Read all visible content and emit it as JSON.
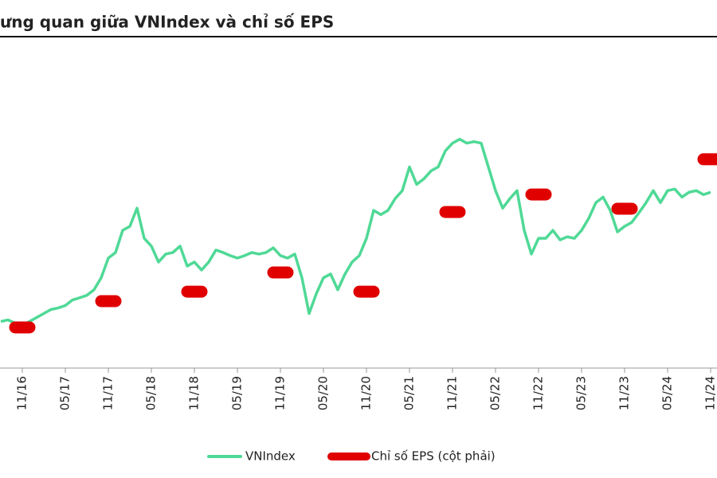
{
  "chart_data": {
    "type": "line",
    "title": "ưng quan giữa VNIndex và chỉ số EPS",
    "x": [
      "08/16",
      "09/16",
      "10/16",
      "11/16",
      "12/16",
      "01/17",
      "02/17",
      "03/17",
      "04/17",
      "05/17",
      "06/17",
      "07/17",
      "08/17",
      "09/17",
      "10/17",
      "11/17",
      "12/17",
      "01/18",
      "02/18",
      "03/18",
      "04/18",
      "05/18",
      "06/18",
      "07/18",
      "08/18",
      "09/18",
      "10/18",
      "11/18",
      "12/18",
      "01/19",
      "02/19",
      "03/19",
      "04/19",
      "05/19",
      "06/19",
      "07/19",
      "08/19",
      "09/19",
      "10/19",
      "11/19",
      "12/19",
      "01/20",
      "02/20",
      "03/20",
      "04/20",
      "05/20",
      "06/20",
      "07/20",
      "08/20",
      "09/20",
      "10/20",
      "11/20",
      "12/20",
      "01/21",
      "02/21",
      "03/21",
      "04/21",
      "05/21",
      "06/21",
      "07/21",
      "08/21",
      "09/21",
      "10/21",
      "11/21",
      "12/21",
      "01/22",
      "02/22",
      "03/22",
      "04/22",
      "05/22",
      "06/22",
      "07/22",
      "08/22",
      "09/22",
      "10/22",
      "11/22",
      "12/22",
      "01/23",
      "02/23",
      "03/23",
      "04/23",
      "05/23",
      "06/23",
      "07/23",
      "08/23",
      "09/23",
      "10/23",
      "11/23",
      "12/23",
      "01/24",
      "02/24",
      "03/24",
      "04/24",
      "05/24",
      "06/24",
      "07/24",
      "08/24",
      "09/24",
      "10/24",
      "11/24"
    ],
    "tick_every": 6,
    "tick_start": 3,
    "series": [
      {
        "name": "VNIndex",
        "color": "#4fd996",
        "values": [
          660,
          667,
          653,
          642,
          660,
          678,
          696,
          714,
          721,
          732,
          757,
          767,
          778,
          803,
          857,
          946,
          971,
          1071,
          1089,
          1171,
          1035,
          1000,
          928,
          964,
          971,
          1000,
          910,
          928,
          892,
          928,
          982,
          971,
          957,
          946,
          957,
          971,
          964,
          971,
          992,
          957,
          946,
          964,
          857,
          696,
          785,
          857,
          874,
          803,
          874,
          928,
          957,
          1035,
          1161,
          1142,
          1161,
          1214,
          1250,
          1357,
          1278,
          1303,
          1339,
          1357,
          1429,
          1464,
          1482,
          1464,
          1471,
          1464,
          1357,
          1250,
          1171,
          1214,
          1250,
          1071,
          964,
          1035,
          1035,
          1071,
          1028,
          1042,
          1035,
          1071,
          1125,
          1196,
          1221,
          1161,
          1064,
          1089,
          1107,
          1150,
          1196,
          1250,
          1196,
          1250,
          1257,
          1221,
          1243,
          1250,
          1232,
          1243
        ]
      },
      {
        "name": "Chỉ số EPS (cột phải)",
        "color": "#e00000",
        "axis": "y2",
        "values": [
          null,
          null,
          null,
          823,
          null,
          null,
          null,
          null,
          null,
          null,
          null,
          null,
          null,
          null,
          null,
          967,
          null,
          null,
          null,
          null,
          null,
          null,
          null,
          null,
          null,
          null,
          null,
          1019,
          null,
          null,
          null,
          null,
          null,
          null,
          null,
          null,
          null,
          null,
          null,
          1124,
          null,
          null,
          null,
          null,
          null,
          null,
          null,
          null,
          null,
          null,
          null,
          1019,
          null,
          null,
          null,
          null,
          null,
          null,
          null,
          null,
          null,
          null,
          null,
          1456,
          null,
          null,
          null,
          null,
          null,
          null,
          null,
          null,
          null,
          null,
          null,
          1552,
          null,
          null,
          null,
          null,
          null,
          null,
          null,
          null,
          null,
          null,
          null,
          1474,
          null,
          null,
          null,
          null,
          null,
          null,
          null,
          null,
          null,
          null,
          null,
          1745
        ]
      }
    ],
    "ylim": [
      450,
      1930
    ],
    "y2lim": [
      600,
      2400
    ],
    "grid": false
  }
}
